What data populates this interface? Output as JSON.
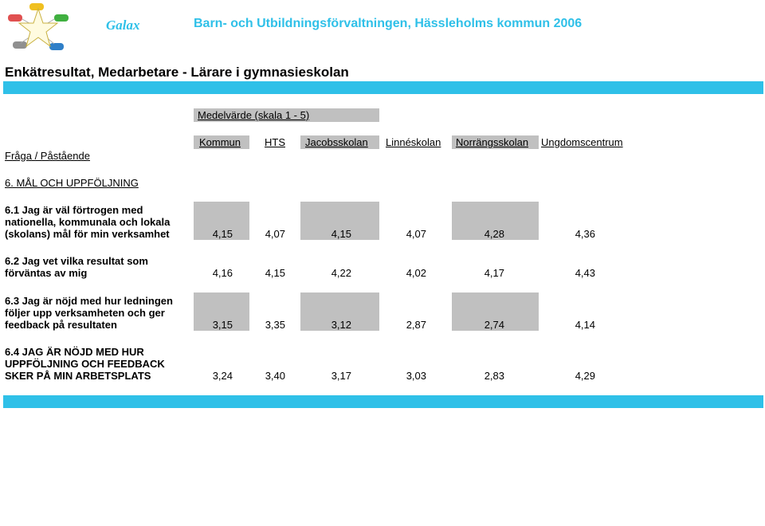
{
  "header": {
    "brand": "Galax",
    "organization": "Barn- och Utbildningsförvaltningen, Hässleholms kommun 2006",
    "title": "Enkätresultat, Medarbetare - Lärare i gymnasieskolan"
  },
  "table": {
    "scale_label": "Medelvärde (skala 1 - 5)",
    "question_header": "Fråga / Påstående",
    "columns": [
      "Kommun",
      "HTS",
      "Jacobsskolan",
      "Linnéskolan",
      "Norrängsskolan",
      "Ungdomscentrum"
    ],
    "section": "6. MÅL OCH UPPFÖLJNING",
    "rows": [
      {
        "lines": [
          "6.1 Jag är väl förtrogen med",
          "nationella, kommunala och lokala",
          "(skolans) mål för min verksamhet"
        ],
        "values": [
          "4,15",
          "4,07",
          "4,15",
          "4,07",
          "4,28",
          "4,36"
        ]
      },
      {
        "lines": [
          "6.2 Jag vet vilka resultat som",
          "förväntas av mig"
        ],
        "values": [
          "4,16",
          "4,15",
          "4,22",
          "4,02",
          "4,17",
          "4,43"
        ]
      },
      {
        "lines": [
          "6.3 Jag är nöjd med hur ledningen",
          "följer upp verksamheten och ger",
          "feedback på resultaten"
        ],
        "values": [
          "3,15",
          "3,35",
          "3,12",
          "2,87",
          "2,74",
          "4,14"
        ]
      },
      {
        "lines": [
          "6.4 JAG ÄR NÖJD MED HUR",
          "UPPFÖLJNING OCH FEEDBACK",
          "SKER PÅ MIN ARBETSPLATS"
        ],
        "values": [
          "3,24",
          "3,40",
          "3,17",
          "3,03",
          "2,83",
          "4,29"
        ]
      }
    ]
  }
}
